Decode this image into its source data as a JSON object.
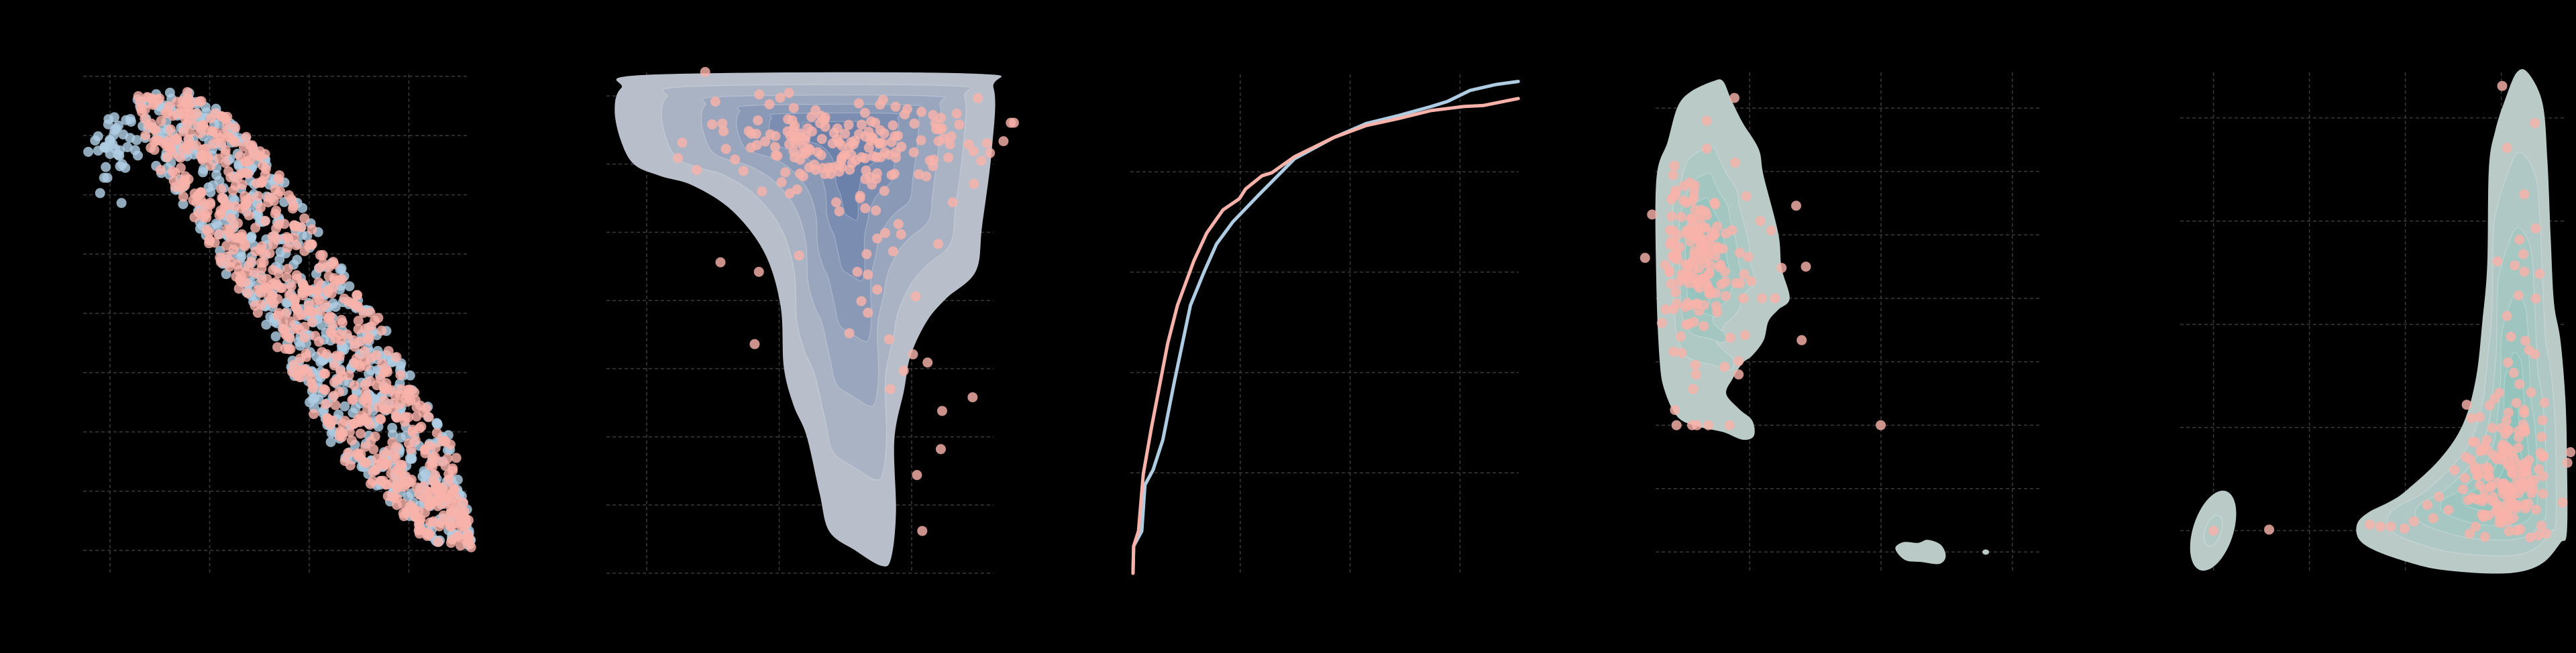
{
  "figure": {
    "background": "#000000",
    "grid_color": "#3a3a3a",
    "grid_style": "dashed"
  },
  "colors": {
    "pink": "#f8b2a9",
    "blue": "#aecde3",
    "kde_slate_low": "#b8bfca",
    "kde_slate_high": "#6c81a9",
    "kde_teal_low": "#b9cac7",
    "kde_teal_high": "#8cc2bb"
  },
  "chart_data": [
    {
      "type": "scatter",
      "grid": true,
      "xlim": [
        -0.28,
        3.6
      ],
      "ylim": [
        -0.38,
        8.1
      ],
      "series": [
        {
          "color": "#aecde3",
          "n": 650,
          "trend": [
            [
              0.85,
              7.0
            ],
            [
              2.05,
              4.0
            ],
            [
              3.3,
              0.5
            ]
          ],
          "extra_cluster": {
            "center": [
              0.05,
              6.8
            ],
            "spread": [
              0.12,
              0.3
            ],
            "n": 40
          }
        },
        {
          "color": "#f8b2a9",
          "n": 700,
          "trend": [
            [
              0.85,
              7.0
            ],
            [
              2.05,
              4.0
            ],
            [
              3.3,
              0.5
            ]
          ]
        }
      ]
    },
    {
      "type": "scatter",
      "overlay": "kde",
      "grid": true,
      "xlim": [
        -0.3,
        2.6
      ],
      "ylim": [
        -0.1,
        7.3
      ],
      "series": [
        {
          "color": "#f8b2a9",
          "cluster": {
            "center": [
              1.5,
              6.35
            ],
            "spread": [
              0.5,
              0.32
            ],
            "n": 170
          },
          "points": [
            [
              0.557,
              4.56
            ],
            [
              0.847,
              4.42
            ],
            [
              0.815,
              3.36
            ],
            [
              2.01,
              3.21
            ],
            [
              2.12,
              3.09
            ],
            [
              1.94,
              2.97
            ],
            [
              1.84,
              2.7
            ],
            [
              2.46,
              2.58
            ],
            [
              2.23,
              2.38
            ],
            [
              2.22,
              1.82
            ],
            [
              2.04,
              1.44
            ],
            [
              2.08,
              0.62
            ],
            [
              1.53,
              3.52
            ],
            [
              1.83,
              3.43
            ],
            [
              2.03,
              4.06
            ],
            [
              2.2,
              4.83
            ],
            [
              2.47,
              5.71
            ],
            [
              2.31,
              5.44
            ],
            [
              2.43,
              6.29
            ],
            [
              2.29,
              6.29
            ],
            [
              2.34,
              6.74
            ],
            [
              2.5,
              6.97
            ],
            [
              1.66,
              4.68
            ],
            [
              1.67,
              4.38
            ],
            [
              1.59,
              4.42
            ],
            [
              1.74,
              4.16
            ],
            [
              1.62,
              3.99
            ],
            [
              1.67,
              3.82
            ],
            [
              1.86,
              4.72
            ],
            [
              1.92,
              4.97
            ],
            [
              1.8,
              4.99
            ],
            [
              1.74,
              4.91
            ],
            [
              1.9,
              5.12
            ],
            [
              1.73,
              5.32
            ],
            [
              1.15,
              4.66
            ],
            [
              0.73,
              5.9
            ],
            [
              0.87,
              5.6
            ],
            [
              1.08,
              5.57
            ],
            [
              1.43,
              5.44
            ],
            [
              1.61,
              5.5
            ],
            [
              1.7,
              5.7
            ],
            [
              2.11,
              5.82
            ]
          ]
        }
      ]
    },
    {
      "type": "line",
      "grid": true,
      "xlim": [
        0,
        3.54
      ],
      "ylim": [
        0,
        5
      ],
      "series": [
        {
          "color": "#aecde3",
          "x": [
            0.024,
            0.03,
            0.104,
            0.133,
            0.207,
            0.296,
            0.399,
            0.547,
            0.666,
            0.784,
            0.932,
            1.169,
            1.287,
            1.494,
            1.849,
            2.145,
            2.44,
            2.737,
            2.885,
            3.09,
            3.33,
            3.53
          ],
          "y": [
            0,
            0.27,
            0.42,
            0.88,
            1.03,
            1.33,
            1.9,
            2.67,
            2.99,
            3.28,
            3.5,
            3.77,
            3.9,
            4.13,
            4.34,
            4.48,
            4.56,
            4.65,
            4.7,
            4.81,
            4.87,
            4.9
          ]
        },
        {
          "color": "#f8b2a9",
          "x": [
            0.024,
            0.03,
            0.074,
            0.118,
            0.192,
            0.266,
            0.34,
            0.429,
            0.577,
            0.695,
            0.843,
            0.991,
            1.05,
            1.198,
            1.287,
            1.494,
            1.849,
            2.145,
            2.44,
            2.737,
            3.033,
            3.21,
            3.53
          ],
          "y": [
            0,
            0.27,
            0.42,
            0.99,
            1.45,
            1.87,
            2.29,
            2.67,
            3.11,
            3.39,
            3.62,
            3.73,
            3.83,
            3.96,
            3.99,
            4.15,
            4.34,
            4.46,
            4.53,
            4.61,
            4.65,
            4.66,
            4.73
          ]
        }
      ]
    },
    {
      "type": "scatter",
      "overlay": "kde",
      "grid": true,
      "xlim": [
        -0.72,
        2.22
      ],
      "ylim": [
        -0.34,
        7.55
      ],
      "series": [
        {
          "color": "#f8b2a9",
          "cluster": {
            "center": [
              -0.4,
              4.66
            ],
            "spread": [
              0.13,
              0.55
            ],
            "n": 150
          },
          "points": [
            [
              -0.116,
              7.16
            ],
            [
              -0.327,
              6.8
            ],
            [
              -0.327,
              6.36
            ],
            [
              -0.111,
              6.14
            ],
            [
              -0.418,
              5.78
            ],
            [
              -0.025,
              5.61
            ],
            [
              0.354,
              5.46
            ],
            [
              0.082,
              5.22
            ],
            [
              0.163,
              5.07
            ],
            [
              0.243,
              4.48
            ],
            [
              0.428,
              4.5
            ],
            [
              -0.042,
              4.38
            ],
            [
              -0.104,
              4.24
            ],
            [
              0.012,
              4.27
            ],
            [
              -0.047,
              4.0
            ],
            [
              0.094,
              4.0
            ],
            [
              0.193,
              4.0
            ],
            [
              -0.035,
              3.42
            ],
            [
              0.396,
              3.34
            ],
            [
              -0.191,
              2.92
            ],
            [
              -0.084,
              3.01
            ],
            [
              -0.084,
              2.8
            ],
            [
              -0.413,
              2.95
            ],
            [
              -0.408,
              2.8
            ],
            [
              -0.431,
              2.57
            ],
            [
              -0.569,
              2.24
            ],
            [
              -0.557,
              2.0
            ],
            [
              -0.438,
              2.0
            ],
            [
              -0.401,
              2.0
            ],
            [
              -0.314,
              2.0
            ],
            [
              -0.153,
              2.0
            ],
            [
              0.998,
              2.0
            ],
            [
              -0.579,
              3.16
            ],
            [
              -0.525,
              3.4
            ]
          ]
        }
      ]
    },
    {
      "type": "scatter",
      "overlay": "kde",
      "grid": true,
      "xlim": [
        -0.35,
        3.68
      ],
      "ylim": [
        -0.41,
        4.44
      ],
      "series": [
        {
          "color": "#f8b2a9",
          "cluster": {
            "center": [
              3.07,
              0.47
            ],
            "spread": [
              0.22,
              0.33
            ],
            "n": 150
          },
          "points": [
            [
              3.01,
              4.31
            ],
            [
              3.35,
              3.95
            ],
            [
              3.06,
              3.71
            ],
            [
              3.24,
              3.26
            ],
            [
              3.36,
              2.93
            ],
            [
              3.19,
              2.82
            ],
            [
              3.23,
              2.68
            ],
            [
              2.96,
              2.61
            ],
            [
              3.14,
              2.57
            ],
            [
              3.24,
              2.51
            ],
            [
              3.4,
              2.49
            ],
            [
              3.18,
              2.28
            ],
            [
              3.36,
              2.25
            ],
            [
              3.06,
              2.08
            ],
            [
              3.1,
              1.88
            ],
            [
              3.25,
              1.84
            ],
            [
              3.29,
              1.75
            ],
            [
              3.35,
              1.71
            ],
            [
              3.07,
              1.63
            ],
            [
              3.13,
              1.53
            ],
            [
              3.19,
              1.42
            ],
            [
              3.31,
              1.34
            ],
            [
              2.64,
              1.22
            ],
            [
              2.69,
              1.09
            ],
            [
              2.93,
              1.28
            ],
            [
              3.45,
              1.24
            ],
            [
              3.43,
              1.07
            ],
            [
              0.58,
              0.01
            ],
            [
              0,
              0
            ],
            [
              1.63,
              0.06
            ],
            [
              1.74,
              0.04
            ],
            [
              1.85,
              0.04
            ],
            [
              1.99,
              0.02
            ],
            [
              2.09,
              0.09
            ],
            [
              2.23,
              0.25
            ],
            [
              2.35,
              0.33
            ],
            [
              2.29,
              0.12
            ],
            [
              2.45,
              0.2
            ],
            [
              2.62,
              0.51
            ],
            [
              2.6,
              0.4
            ],
            [
              2.72,
              0.62
            ],
            [
              2.87,
              0.59
            ]
          ]
        }
      ]
    }
  ]
}
